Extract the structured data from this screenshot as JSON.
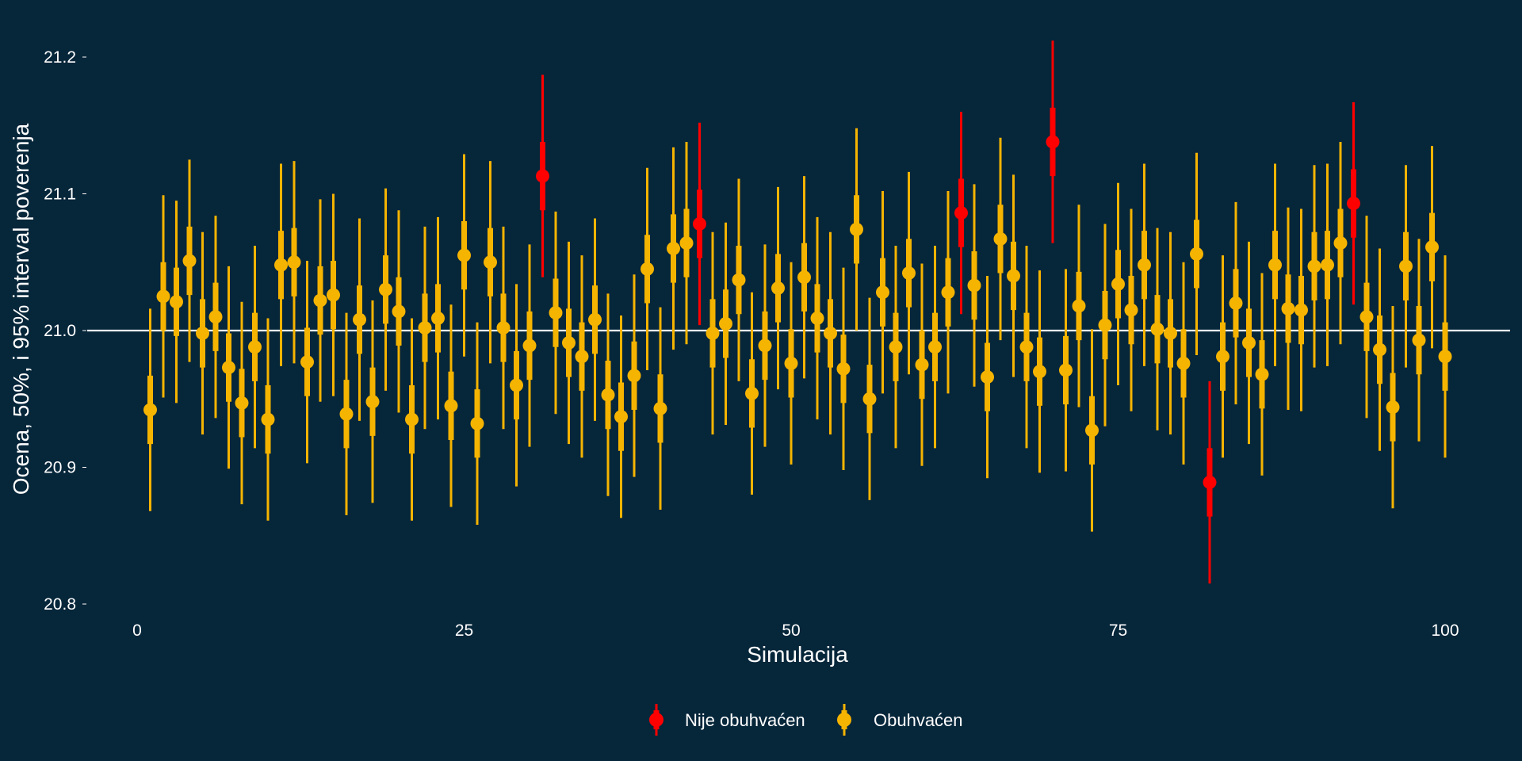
{
  "chart_data": {
    "type": "scatter",
    "title": "",
    "xlabel": "Simulacija",
    "ylabel": "Ocena, 50%, i 95% interval poverenja",
    "xlim": [
      0,
      100
    ],
    "ylim": [
      20.8,
      21.2
    ],
    "x_ticks": [
      "0",
      "25",
      "50",
      "75",
      "100"
    ],
    "y_ticks": [
      "20.8",
      "20.9",
      "21.0",
      "21.1",
      "21.2"
    ],
    "reference_line": 21.0,
    "grid": false,
    "legend_position": "bottom",
    "legend": [
      {
        "label": "Nije obuhvaćen",
        "color": "#FF0000"
      },
      {
        "label": "Obuhvaćen",
        "color": "#F5B400"
      }
    ],
    "colors": {
      "background": "#06263A",
      "reference_line": "#FFFFFF",
      "not_covered": "#FF0000",
      "covered": "#F5B400",
      "text": "#FFFFFF"
    },
    "series_fields": [
      "x",
      "estimate",
      "ci50_low",
      "ci50_high",
      "ci95_low",
      "ci95_high",
      "covered"
    ],
    "points": [
      [
        1,
        20.942,
        20.917,
        20.967,
        20.868,
        21.016,
        true
      ],
      [
        2,
        21.025,
        21.0,
        21.05,
        20.951,
        21.099,
        true
      ],
      [
        3,
        21.021,
        20.996,
        21.046,
        20.947,
        21.095,
        true
      ],
      [
        4,
        21.051,
        21.026,
        21.076,
        20.977,
        21.125,
        true
      ],
      [
        5,
        20.998,
        20.973,
        21.023,
        20.924,
        21.072,
        true
      ],
      [
        6,
        21.01,
        20.985,
        21.035,
        20.936,
        21.084,
        true
      ],
      [
        7,
        20.973,
        20.948,
        20.998,
        20.899,
        21.047,
        true
      ],
      [
        8,
        20.947,
        20.922,
        20.972,
        20.873,
        21.021,
        true
      ],
      [
        9,
        20.988,
        20.963,
        21.013,
        20.914,
        21.062,
        true
      ],
      [
        10,
        20.935,
        20.91,
        20.96,
        20.861,
        21.009,
        true
      ],
      [
        11,
        21.048,
        21.023,
        21.073,
        20.974,
        21.122,
        true
      ],
      [
        12,
        21.05,
        21.025,
        21.075,
        20.976,
        21.124,
        true
      ],
      [
        13,
        20.977,
        20.952,
        21.002,
        20.903,
        21.051,
        true
      ],
      [
        14,
        21.022,
        20.997,
        21.047,
        20.948,
        21.096,
        true
      ],
      [
        15,
        21.026,
        21.001,
        21.051,
        20.952,
        21.1,
        true
      ],
      [
        16,
        20.939,
        20.914,
        20.964,
        20.865,
        21.013,
        true
      ],
      [
        17,
        21.008,
        20.983,
        21.033,
        20.934,
        21.082,
        true
      ],
      [
        18,
        20.948,
        20.923,
        20.973,
        20.874,
        21.022,
        true
      ],
      [
        19,
        21.03,
        21.005,
        21.055,
        20.956,
        21.104,
        true
      ],
      [
        20,
        21.014,
        20.989,
        21.039,
        20.94,
        21.088,
        true
      ],
      [
        21,
        20.935,
        20.91,
        20.96,
        20.861,
        21.009,
        true
      ],
      [
        22,
        21.002,
        20.977,
        21.027,
        20.928,
        21.076,
        true
      ],
      [
        23,
        21.009,
        20.984,
        21.034,
        20.935,
        21.083,
        true
      ],
      [
        24,
        20.945,
        20.92,
        20.97,
        20.871,
        21.019,
        true
      ],
      [
        25,
        21.055,
        21.03,
        21.08,
        20.981,
        21.129,
        true
      ],
      [
        26,
        20.932,
        20.907,
        20.957,
        20.858,
        21.006,
        true
      ],
      [
        27,
        21.05,
        21.025,
        21.075,
        20.976,
        21.124,
        true
      ],
      [
        28,
        21.002,
        20.977,
        21.027,
        20.928,
        21.076,
        true
      ],
      [
        29,
        20.96,
        20.935,
        20.985,
        20.886,
        21.034,
        true
      ],
      [
        30,
        20.989,
        20.964,
        21.014,
        20.915,
        21.063,
        true
      ],
      [
        31,
        21.113,
        21.088,
        21.138,
        21.039,
        21.187,
        false
      ],
      [
        32,
        21.013,
        20.988,
        21.038,
        20.939,
        21.087,
        true
      ],
      [
        33,
        20.991,
        20.966,
        21.016,
        20.917,
        21.065,
        true
      ],
      [
        34,
        20.981,
        20.956,
        21.006,
        20.907,
        21.055,
        true
      ],
      [
        35,
        21.008,
        20.983,
        21.033,
        20.934,
        21.082,
        true
      ],
      [
        36,
        20.953,
        20.928,
        20.978,
        20.879,
        21.027,
        true
      ],
      [
        37,
        20.937,
        20.912,
        20.962,
        20.863,
        21.011,
        true
      ],
      [
        38,
        20.967,
        20.942,
        20.992,
        20.893,
        21.041,
        true
      ],
      [
        39,
        21.045,
        21.02,
        21.07,
        20.971,
        21.119,
        true
      ],
      [
        40,
        20.943,
        20.918,
        20.968,
        20.869,
        21.017,
        true
      ],
      [
        41,
        21.06,
        21.035,
        21.085,
        20.986,
        21.134,
        true
      ],
      [
        42,
        21.064,
        21.039,
        21.089,
        20.99,
        21.138,
        true
      ],
      [
        43,
        21.078,
        21.053,
        21.103,
        21.004,
        21.152,
        false
      ],
      [
        44,
        20.998,
        20.973,
        21.023,
        20.924,
        21.072,
        true
      ],
      [
        45,
        21.005,
        20.98,
        21.03,
        20.931,
        21.079,
        true
      ],
      [
        46,
        21.037,
        21.012,
        21.062,
        20.963,
        21.111,
        true
      ],
      [
        47,
        20.954,
        20.929,
        20.979,
        20.88,
        21.028,
        true
      ],
      [
        48,
        20.989,
        20.964,
        21.014,
        20.915,
        21.063,
        true
      ],
      [
        49,
        21.031,
        21.006,
        21.056,
        20.957,
        21.105,
        true
      ],
      [
        50,
        20.976,
        20.951,
        21.001,
        20.902,
        21.05,
        true
      ],
      [
        51,
        21.039,
        21.014,
        21.064,
        20.965,
        21.113,
        true
      ],
      [
        52,
        21.009,
        20.984,
        21.034,
        20.935,
        21.083,
        true
      ],
      [
        53,
        20.998,
        20.973,
        21.023,
        20.924,
        21.072,
        true
      ],
      [
        54,
        20.972,
        20.947,
        20.997,
        20.898,
        21.046,
        true
      ],
      [
        55,
        21.074,
        21.049,
        21.099,
        21.0,
        21.148,
        true
      ],
      [
        56,
        20.95,
        20.925,
        20.975,
        20.876,
        21.024,
        true
      ],
      [
        57,
        21.028,
        21.003,
        21.053,
        20.954,
        21.102,
        true
      ],
      [
        58,
        20.988,
        20.963,
        21.013,
        20.914,
        21.062,
        true
      ],
      [
        59,
        21.042,
        21.017,
        21.067,
        20.968,
        21.116,
        true
      ],
      [
        60,
        20.975,
        20.95,
        21.0,
        20.901,
        21.049,
        true
      ],
      [
        61,
        20.988,
        20.963,
        21.013,
        20.914,
        21.062,
        true
      ],
      [
        62,
        21.028,
        21.003,
        21.053,
        20.954,
        21.102,
        true
      ],
      [
        63,
        21.086,
        21.061,
        21.111,
        21.012,
        21.16,
        false
      ],
      [
        64,
        21.033,
        21.008,
        21.058,
        20.959,
        21.107,
        true
      ],
      [
        65,
        20.966,
        20.941,
        20.991,
        20.892,
        21.04,
        true
      ],
      [
        66,
        21.067,
        21.042,
        21.092,
        20.993,
        21.141,
        true
      ],
      [
        67,
        21.04,
        21.015,
        21.065,
        20.966,
        21.114,
        true
      ],
      [
        68,
        20.988,
        20.963,
        21.013,
        20.914,
        21.062,
        true
      ],
      [
        69,
        20.97,
        20.945,
        20.995,
        20.896,
        21.044,
        true
      ],
      [
        70,
        21.138,
        21.113,
        21.163,
        21.064,
        21.212,
        false
      ],
      [
        71,
        20.971,
        20.946,
        20.996,
        20.897,
        21.045,
        true
      ],
      [
        72,
        21.018,
        20.993,
        21.043,
        20.944,
        21.092,
        true
      ],
      [
        73,
        20.927,
        20.902,
        20.952,
        20.853,
        21.001,
        true
      ],
      [
        74,
        21.004,
        20.979,
        21.029,
        20.93,
        21.078,
        true
      ],
      [
        75,
        21.034,
        21.009,
        21.059,
        20.96,
        21.108,
        true
      ],
      [
        76,
        21.015,
        20.99,
        21.04,
        20.941,
        21.089,
        true
      ],
      [
        77,
        21.048,
        21.023,
        21.073,
        20.974,
        21.122,
        true
      ],
      [
        78,
        21.001,
        20.976,
        21.026,
        20.927,
        21.075,
        true
      ],
      [
        79,
        20.998,
        20.973,
        21.023,
        20.924,
        21.072,
        true
      ],
      [
        80,
        20.976,
        20.951,
        21.001,
        20.902,
        21.05,
        true
      ],
      [
        81,
        21.056,
        21.031,
        21.081,
        20.982,
        21.13,
        true
      ],
      [
        82,
        20.889,
        20.864,
        20.914,
        20.815,
        20.963,
        false
      ],
      [
        83,
        20.981,
        20.956,
        21.006,
        20.907,
        21.055,
        true
      ],
      [
        84,
        21.02,
        20.995,
        21.045,
        20.946,
        21.094,
        true
      ],
      [
        85,
        20.991,
        20.966,
        21.016,
        20.917,
        21.065,
        true
      ],
      [
        86,
        20.968,
        20.943,
        20.993,
        20.894,
        21.042,
        true
      ],
      [
        87,
        21.048,
        21.023,
        21.073,
        20.974,
        21.122,
        true
      ],
      [
        88,
        21.016,
        20.991,
        21.041,
        20.942,
        21.09,
        true
      ],
      [
        89,
        21.015,
        20.99,
        21.04,
        20.941,
        21.089,
        true
      ],
      [
        90,
        21.047,
        21.022,
        21.072,
        20.973,
        21.121,
        true
      ],
      [
        91,
        21.048,
        21.023,
        21.073,
        20.974,
        21.122,
        true
      ],
      [
        92,
        21.064,
        21.039,
        21.089,
        20.99,
        21.138,
        true
      ],
      [
        93,
        21.093,
        21.068,
        21.118,
        21.019,
        21.167,
        false
      ],
      [
        94,
        21.01,
        20.985,
        21.035,
        20.936,
        21.084,
        true
      ],
      [
        95,
        20.986,
        20.961,
        21.011,
        20.912,
        21.06,
        true
      ],
      [
        96,
        20.944,
        20.919,
        20.969,
        20.87,
        21.018,
        true
      ],
      [
        97,
        21.047,
        21.022,
        21.072,
        20.973,
        21.121,
        true
      ],
      [
        98,
        20.993,
        20.968,
        21.018,
        20.919,
        21.067,
        true
      ],
      [
        99,
        21.061,
        21.036,
        21.086,
        20.987,
        21.135,
        true
      ],
      [
        100,
        20.981,
        20.956,
        21.006,
        20.907,
        21.055,
        true
      ]
    ]
  }
}
